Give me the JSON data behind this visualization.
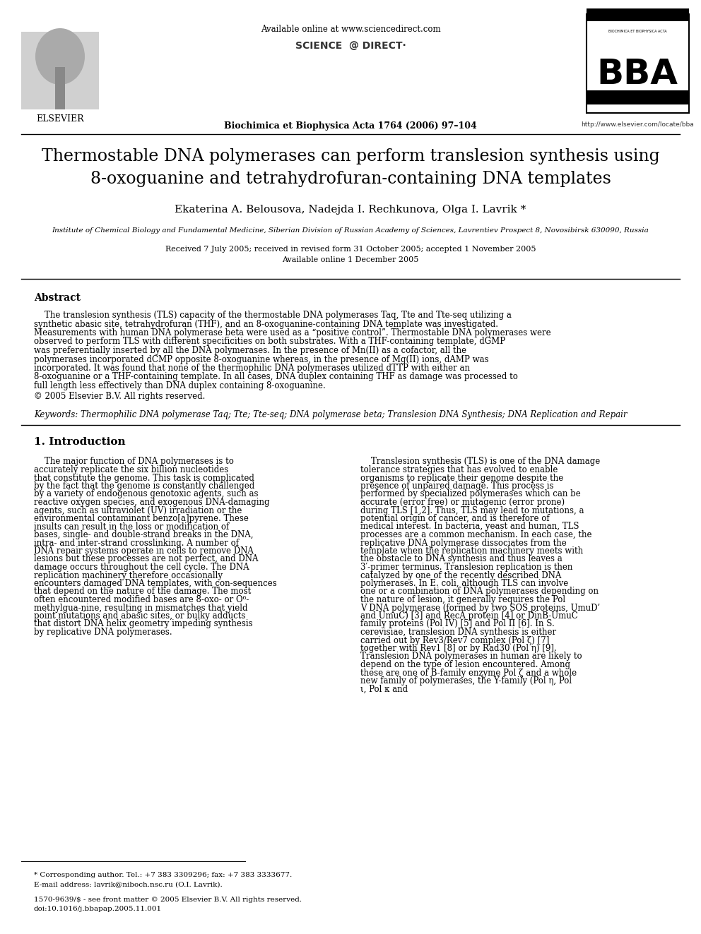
{
  "bg_color": "#ffffff",
  "header": {
    "available_online": "Available online at www.sciencedirect.com",
    "journal_line": "Biochimica et Biophysica Acta 1764 (2006) 97–104",
    "url": "http://www.elsevier.com/locate/bba"
  },
  "title": "Thermostable DNA polymerases can perform translesion synthesis using\n8-oxoguanine and tetrahydrofuran-containing DNA templates",
  "authors": "Ekaterina A. Belousova, Nadejda I. Rechkunova, Olga I. Lavrik *",
  "affiliation": "Institute of Chemical Biology and Fundamental Medicine, Siberian Division of Russian Academy of Sciences, Lavrentiev Prospect 8, Novosibirsk 630090, Russia",
  "dates": "Received 7 July 2005; received in revised form 31 October 2005; accepted 1 November 2005\nAvailable online 1 December 2005",
  "abstract_title": "Abstract",
  "abstract_body": "The translesion synthesis (TLS) capacity of the thermostable DNA polymerases Taq, Tte and Tte-seq utilizing a synthetic abasic site, tetrahydrofuran (THF), and an 8-oxoguanine-containing DNA template was investigated. Measurements with human DNA polymerase beta were used as a “positive control”. Thermostable DNA polymerases were observed to perform TLS with different specificities on both substrates. With a THF-containing template, dGMP was preferentially inserted by all the DNA polymerases. In the presence of Mn(II) as a cofactor, all the polymerases incorporated dCMP opposite 8-oxoguanine whereas, in the presence of Mg(II) ions, dAMP was incorporated. It was found that none of the thermophilic DNA polymerases utilized dTTP with either an 8-oxoguanine or a THF-containing template. In all cases, DNA duplex containing THF as damage was processed to full length less effectively than DNA duplex containing 8-oxoguanine.\n© 2005 Elsevier B.V. All rights reserved.",
  "keywords": "Keywords: Thermophilic DNA polymerase Taq; Tte; Tte-seq; DNA polymerase beta; Translesion DNA Synthesis; DNA Replication and Repair",
  "section1_title": "1. Introduction",
  "section1_left": "The major function of DNA polymerases is to accurately replicate the six billion nucleotides that constitute the genome. This task is complicated by the fact that the genome is constantly challenged by a variety of endogenous genotoxic agents, such as reactive oxygen species, and exogenous DNA-damaging agents, such as ultraviolet (UV) irradiation or the environmental contaminant benzo[a]pyrene. These insults can result in the loss or modification of bases, single- and double-strand breaks in the DNA, intra- and inter-strand crosslinking. A number of DNA repair systems operate in cells to remove DNA lesions but these processes are not perfect, and DNA damage occurs throughout the cell cycle. The DNA replication machinery therefore occasionally encounters damaged DNA templates, with con-sequences that depend on the nature of the damage. The most often encountered modified bases are 8-oxo- or O⁶-methylgua-nine, resulting in mismatches that yield point mutations and abasic sites, or bulky adducts that distort DNA helix geometry impeding synthesis by replicative DNA polymerases.",
  "section1_right": "Translesion synthesis (TLS) is one of the DNA damage tolerance strategies that has evolved to enable organisms to replicate their genome despite the presence of unpaired damage. This process is performed by specialized polymerases which can be accurate (error free) or mutagenic (error prone) during TLS [1,2]. Thus, TLS may lead to mutations, a potential origin of cancer, and is therefore of medical interest. In bacteria, yeast and human, TLS processes are a common mechanism. In each case, the replicative DNA polymerase dissociates from the template when the replication machinery meets with the obstacle to DNA synthesis and thus leaves a 3′-primer terminus. Translesion replication is then catalyzed by one of the recently described DNA polymerases. In E. coli, although TLS can involve one or a combination of DNA polymerases depending on the nature of lesion, it generally requires the Pol V DNA polymerase (formed by two SOS proteins, UmuD’ and UmuC) [3] and RecA protein [4] or DinB-UmuC family proteins (Pol IV) [5] and Pol II [6]. In S. cerevisiae, translesion DNA synthesis is either carried out by Rev3/Rev7 complex (Pol ζ) [7] together with Rev1 [8] or by Rad30 (Pol η) [9]. Translesion DNA polymerases in human are likely to depend on the type of lesion encountered. Among these are one of B-family enzyme Pol ζ and a whole new family of polymerases, the Y-family (Pol η, Pol ι, Pol κ and",
  "footnote_star": "* Corresponding author. Tel.: +7 383 3309296; fax: +7 383 3333677.\nE-mail address: lavrik@niboch.nsc.ru (O.I. Lavrik).",
  "footnote_issn": "1570-9639/$ - see front matter © 2005 Elsevier B.V. All rights reserved.\ndoi:10.1016/j.bbapap.2005.11.001"
}
